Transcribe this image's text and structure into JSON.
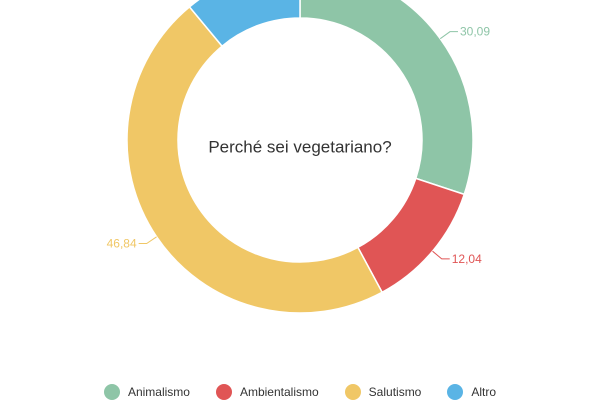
{
  "chart_data": {
    "type": "pie",
    "variant": "donut",
    "title": "Perché sei vegetariano?",
    "legend_position": "bottom",
    "categories": [
      "Animalismo",
      "Ambientalismo",
      "Salutismo",
      "Altro"
    ],
    "values": [
      30.09,
      12.04,
      46.84,
      11.03
    ],
    "data_labels": [
      "30,09",
      "12,04",
      "46,84",
      ""
    ],
    "colors": [
      "#8ec5a7",
      "#e05555",
      "#f0c766",
      "#5ab4e5"
    ]
  }
}
